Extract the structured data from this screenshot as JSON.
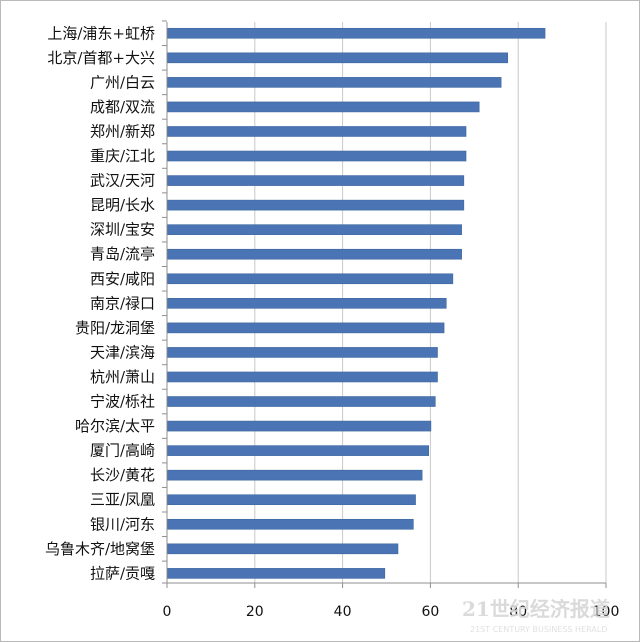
{
  "chart_data": {
    "type": "bar",
    "orientation": "horizontal",
    "categories": [
      "上海/浦东+虹桥",
      "北京/首都+大兴",
      "广州/白云",
      "成都/双流",
      "郑州/新郑",
      "重庆/江北",
      "武汉/天河",
      "昆明/长水",
      "深圳/宝安",
      "青岛/流亭",
      "西安/咸阳",
      "南京/禄口",
      "贵阳/龙洞堡",
      "天津/滨海",
      "杭州/萧山",
      "宁波/栎社",
      "哈尔滨/太平",
      "厦门/高崎",
      "长沙/黄花",
      "三亚/凤凰",
      "银川/河东",
      "乌鲁木齐/地窝堡",
      "拉萨/贡嘎"
    ],
    "values": [
      86,
      77.5,
      76,
      71,
      68,
      68,
      67.5,
      67.5,
      67,
      67,
      65,
      63.5,
      63,
      61.5,
      61.5,
      61,
      60,
      59.5,
      58,
      56.5,
      56,
      52.5,
      49.5
    ],
    "xlim": [
      0,
      100
    ],
    "xticks": [
      0,
      20,
      40,
      60,
      80,
      100
    ],
    "grid": true,
    "legend": false,
    "title": "",
    "xlabel": "",
    "ylabel": "",
    "colors": {
      "bar": "#4a74b3",
      "bar_edge": "#3f679f",
      "grid": "#c8c8c8",
      "axis": "#8f8f8f",
      "frame": "#b9b9b9"
    }
  },
  "watermark": {
    "main": "21世纪经济报道",
    "sub": "21ST CENTURY BUSINESS HERALD"
  }
}
